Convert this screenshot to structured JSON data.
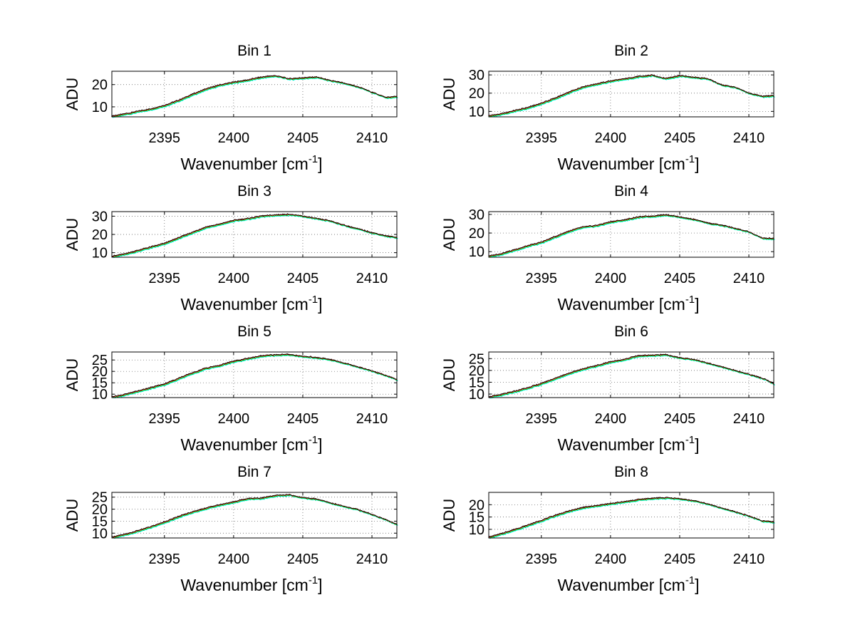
{
  "figure": {
    "background": "#ffffff",
    "series_colors": [
      "#00ffff",
      "#00c000",
      "#ff0000",
      "#000000"
    ]
  },
  "chart_data": [
    {
      "type": "line",
      "title": "Bin 1",
      "xlabel": "Wavenumber [cm",
      "xlabel_sup": "-1",
      "xlabel_end": "]",
      "ylabel": "ADU",
      "xlim": [
        2391.2,
        2411.8
      ],
      "ylim": [
        5.5,
        26
      ],
      "xticks": [
        2395,
        2400,
        2405,
        2410
      ],
      "yticks": [
        10,
        20
      ],
      "grid": true,
      "x": [
        2391.2,
        2392,
        2393,
        2394,
        2395,
        2396,
        2397,
        2398,
        2399,
        2400,
        2401,
        2402,
        2403,
        2404,
        2405,
        2406,
        2407,
        2408,
        2409,
        2410,
        2411,
        2411.8
      ],
      "series": [
        {
          "values": [
            5.8,
            6.6,
            7.8,
            9.0,
            10.6,
            12.8,
            15.5,
            18.0,
            19.8,
            21.0,
            22.0,
            23.3,
            24.0,
            22.6,
            23.0,
            23.4,
            21.8,
            20.6,
            19.0,
            16.6,
            14.2,
            14.6
          ]
        }
      ]
    },
    {
      "type": "line",
      "title": "Bin 2",
      "xlabel": "Wavenumber [cm",
      "xlabel_sup": "-1",
      "xlabel_end": "]",
      "ylabel": "ADU",
      "xlim": [
        2391.2,
        2411.8
      ],
      "ylim": [
        7,
        32
      ],
      "xticks": [
        2395,
        2400,
        2405,
        2410
      ],
      "yticks": [
        10,
        20,
        30
      ],
      "grid": true,
      "x": [
        2391.2,
        2392,
        2393,
        2394,
        2395,
        2396,
        2397,
        2398,
        2399,
        2400,
        2401,
        2402,
        2403,
        2404,
        2405,
        2406,
        2407,
        2408,
        2409,
        2410,
        2411,
        2411.8
      ],
      "series": [
        {
          "values": [
            7.6,
            8.4,
            10.2,
            12.0,
            14.4,
            17.2,
            20.4,
            23.4,
            25.0,
            26.6,
            27.8,
            29.0,
            29.8,
            28.0,
            29.6,
            28.6,
            28.0,
            24.6,
            23.2,
            20.0,
            18.2,
            18.6
          ]
        }
      ]
    },
    {
      "type": "line",
      "title": "Bin 3",
      "xlabel": "Wavenumber [cm",
      "xlabel_sup": "-1",
      "xlabel_end": "]",
      "ylabel": "ADU",
      "xlim": [
        2391.2,
        2411.8
      ],
      "ylim": [
        7.5,
        32.5
      ],
      "xticks": [
        2395,
        2400,
        2405,
        2410
      ],
      "yticks": [
        10,
        20,
        30
      ],
      "grid": true,
      "x": [
        2391.2,
        2392,
        2393,
        2394,
        2395,
        2396,
        2397,
        2398,
        2399,
        2400,
        2401,
        2402,
        2403,
        2404,
        2405,
        2406,
        2407,
        2408,
        2409,
        2410,
        2411,
        2411.8
      ],
      "series": [
        {
          "values": [
            8.0,
            9.0,
            11.0,
            13.0,
            15.0,
            18.0,
            21.0,
            24.0,
            25.6,
            27.6,
            28.6,
            30.0,
            30.6,
            31.0,
            30.0,
            28.6,
            27.4,
            25.0,
            23.0,
            21.0,
            19.2,
            18.4
          ]
        }
      ]
    },
    {
      "type": "line",
      "title": "Bin 4",
      "xlabel": "Wavenumber [cm",
      "xlabel_sup": "-1",
      "xlabel_end": "]",
      "ylabel": "ADU",
      "xlim": [
        2391.2,
        2411.8
      ],
      "ylim": [
        7,
        31.5
      ],
      "xticks": [
        2395,
        2400,
        2405,
        2410
      ],
      "yticks": [
        10,
        20,
        30
      ],
      "grid": true,
      "x": [
        2391.2,
        2392,
        2393,
        2394,
        2395,
        2396,
        2397,
        2398,
        2399,
        2400,
        2401,
        2402,
        2403,
        2404,
        2405,
        2406,
        2407,
        2408,
        2409,
        2410,
        2411,
        2411.8
      ],
      "series": [
        {
          "values": [
            7.6,
            8.6,
            10.8,
            13.0,
            15.0,
            18.0,
            21.0,
            23.2,
            24.0,
            26.0,
            27.0,
            28.6,
            29.0,
            29.8,
            28.6,
            27.4,
            25.4,
            24.2,
            22.6,
            20.6,
            17.2,
            17.0
          ]
        }
      ]
    },
    {
      "type": "line",
      "title": "Bin 5",
      "xlabel": "Wavenumber [cm",
      "xlabel_sup": "-1",
      "xlabel_end": "]",
      "ylabel": "ADU",
      "xlim": [
        2391.2,
        2411.8
      ],
      "ylim": [
        8.5,
        28.5
      ],
      "xticks": [
        2395,
        2400,
        2405,
        2410
      ],
      "yticks": [
        10,
        15,
        20,
        25
      ],
      "grid": true,
      "x": [
        2391.2,
        2392,
        2393,
        2394,
        2395,
        2396,
        2397,
        2398,
        2399,
        2400,
        2401,
        2402,
        2403,
        2404,
        2405,
        2406,
        2407,
        2408,
        2409,
        2410,
        2411,
        2411.8
      ],
      "series": [
        {
          "values": [
            8.8,
            9.6,
            11.2,
            12.8,
            14.4,
            16.8,
            19.2,
            21.4,
            22.6,
            24.4,
            25.6,
            26.8,
            27.2,
            27.4,
            26.6,
            26.0,
            25.2,
            23.6,
            22.0,
            20.2,
            18.2,
            16.4
          ]
        }
      ]
    },
    {
      "type": "line",
      "title": "Bin 6",
      "xlabel": "Wavenumber [cm",
      "xlabel_sup": "-1",
      "xlabel_end": "]",
      "ylabel": "ADU",
      "xlim": [
        2391.2,
        2411.8
      ],
      "ylim": [
        8.5,
        27.8
      ],
      "xticks": [
        2395,
        2400,
        2405,
        2410
      ],
      "yticks": [
        10,
        15,
        20,
        25
      ],
      "grid": true,
      "x": [
        2391.2,
        2392,
        2393,
        2394,
        2395,
        2396,
        2397,
        2398,
        2399,
        2400,
        2401,
        2402,
        2403,
        2404,
        2405,
        2406,
        2407,
        2408,
        2409,
        2410,
        2411,
        2411.8
      ],
      "series": [
        {
          "values": [
            8.8,
            9.6,
            11.0,
            12.6,
            14.4,
            16.6,
            18.8,
            20.6,
            22.0,
            23.6,
            24.6,
            26.2,
            26.4,
            26.6,
            25.4,
            24.6,
            23.2,
            21.6,
            20.0,
            18.4,
            16.6,
            14.4
          ]
        }
      ]
    },
    {
      "type": "line",
      "title": "Bin 7",
      "xlabel": "Wavenumber [cm",
      "xlabel_sup": "-1",
      "xlabel_end": "]",
      "ylabel": "ADU",
      "xlim": [
        2391.2,
        2411.8
      ],
      "ylim": [
        8,
        27
      ],
      "xticks": [
        2395,
        2400,
        2405,
        2410
      ],
      "yticks": [
        10,
        15,
        20,
        25
      ],
      "grid": true,
      "x": [
        2391.2,
        2392,
        2393,
        2394,
        2395,
        2396,
        2397,
        2398,
        2399,
        2400,
        2401,
        2402,
        2403,
        2404,
        2405,
        2406,
        2407,
        2408,
        2409,
        2410,
        2411,
        2411.8
      ],
      "series": [
        {
          "values": [
            8.4,
            9.2,
            10.8,
            12.6,
            14.6,
            16.8,
            18.8,
            20.4,
            21.8,
            23.0,
            24.4,
            24.6,
            25.6,
            26.0,
            24.8,
            24.2,
            22.6,
            21.2,
            19.8,
            17.8,
            15.6,
            13.6
          ]
        }
      ]
    },
    {
      "type": "line",
      "title": "Bin 8",
      "xlabel": "Wavenumber [cm",
      "xlabel_sup": "-1",
      "xlabel_end": "]",
      "ylabel": "ADU",
      "xlim": [
        2391.2,
        2411.8
      ],
      "ylim": [
        6.5,
        25
      ],
      "xticks": [
        2395,
        2400,
        2405,
        2410
      ],
      "yticks": [
        10,
        15,
        20
      ],
      "grid": true,
      "x": [
        2391.2,
        2392,
        2393,
        2394,
        2395,
        2396,
        2397,
        2398,
        2399,
        2400,
        2401,
        2402,
        2403,
        2404,
        2405,
        2406,
        2407,
        2408,
        2409,
        2410,
        2411,
        2411.8
      ],
      "series": [
        {
          "values": [
            6.8,
            8.0,
            9.8,
            11.6,
            13.6,
            15.6,
            17.4,
            18.8,
            19.6,
            20.4,
            21.2,
            22.0,
            22.6,
            22.8,
            22.4,
            21.6,
            20.4,
            18.6,
            17.2,
            15.4,
            13.4,
            13.0
          ]
        }
      ]
    }
  ]
}
